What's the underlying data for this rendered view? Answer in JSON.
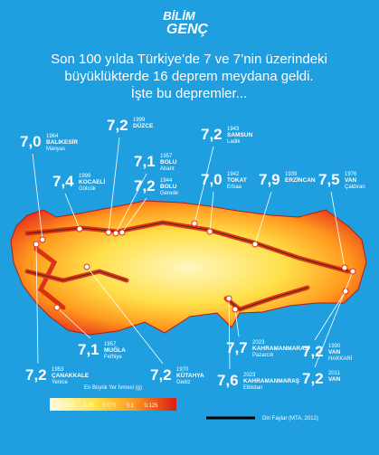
{
  "logo": {
    "line1": "BİLİM",
    "line2": "GENÇ"
  },
  "title": {
    "lines": [
      "Son 100 yılda Türkiye’de 7 ve 7’nin üzerindeki",
      "büyüklükterde 16 deprem meydana geldi.",
      "İşte bu depremler..."
    ]
  },
  "earthquakes": [
    {
      "magnitude": "7,0",
      "year": "1964",
      "province": "BALIKESİR",
      "district": "Manyas"
    },
    {
      "magnitude": "7,4",
      "year": "1999",
      "province": "KOCAELİ",
      "district": "Gölcük"
    },
    {
      "magnitude": "7,2",
      "year": "1999",
      "province": "DÜZCE"
    },
    {
      "magnitude": "7,1",
      "year": "1957",
      "province": "BOLU",
      "district": "Abant"
    },
    {
      "magnitude": "7,2",
      "year": "1944",
      "province": "BOLU",
      "district": "Gerede"
    },
    {
      "magnitude": "7,2",
      "year": "1943",
      "province": "SAMSUN",
      "district": "Ladik"
    },
    {
      "magnitude": "7,0",
      "year": "1942",
      "province": "TOKAT",
      "district": "Erbaa"
    },
    {
      "magnitude": "7,9",
      "year": "1939",
      "province": "ERZİNCAN"
    },
    {
      "magnitude": "7,5",
      "year": "1976",
      "province": "VAN",
      "district": "Çaldıran"
    },
    {
      "magnitude": "7,1",
      "year": "1957",
      "province": "MUĞLA",
      "district": "Fethiye"
    },
    {
      "magnitude": "7,2",
      "year": "1953",
      "province": "ÇANAKKALE",
      "district": "Yenice"
    },
    {
      "magnitude": "7,2",
      "year": "1970",
      "province": "KÜTAHYA",
      "district": "Gediz"
    },
    {
      "magnitude": "7,7",
      "year": "2023",
      "province": "KAHRAMANMARAŞ",
      "district": "Pazarcık"
    },
    {
      "magnitude": "7,6",
      "year": "2023",
      "province": "KAHRAMANMARAŞ",
      "district": "Elbistan"
    },
    {
      "magnitude": "7,2",
      "year": "1930",
      "province": "VAN",
      "district": "HAKKARİ"
    },
    {
      "magnitude": "7,2",
      "year": "2011",
      "province": "VAN"
    }
  ],
  "legend": {
    "title": "En Büyük Yer İvmesi (g)",
    "ticks": [
      "0.025",
      "0.05",
      "0.075",
      "0.1",
      "0.125"
    ],
    "faults": "Diri Faylar (MTA, 2012)"
  }
}
